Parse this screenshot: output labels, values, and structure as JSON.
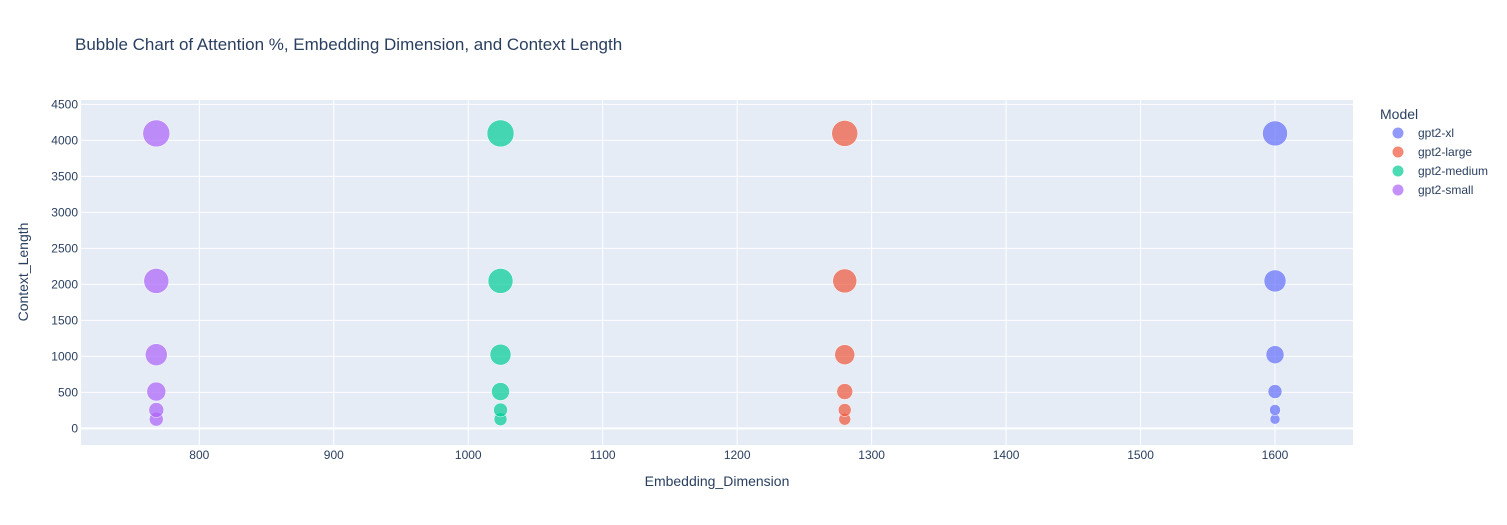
{
  "chart_data": {
    "type": "scatter",
    "title": "Bubble Chart of Attention %, Embedding Dimension, and Context Length",
    "xlabel": "Embedding_Dimension",
    "ylabel": "Context_Length",
    "xlim": [
      712,
      1658
    ],
    "ylim": [
      -230,
      4560
    ],
    "x_ticks": [
      800,
      900,
      1000,
      1100,
      1200,
      1300,
      1400,
      1500,
      1600
    ],
    "y_ticks": [
      0,
      500,
      1000,
      1500,
      2000,
      2500,
      3000,
      3500,
      4000,
      4500
    ],
    "grid": true,
    "legend": {
      "title": "Model",
      "placement": "right"
    },
    "series": [
      {
        "name": "gpt2-xl",
        "color": "#636efa",
        "x": [
          1600,
          1600,
          1600,
          1600,
          1600,
          1600
        ],
        "y": [
          128,
          256,
          512,
          1024,
          2048,
          4096
        ],
        "size": [
          5,
          5.5,
          7,
          9,
          11,
          12.5
        ]
      },
      {
        "name": "gpt2-large",
        "color": "#ef553b",
        "x": [
          1280,
          1280,
          1280,
          1280,
          1280,
          1280
        ],
        "y": [
          128,
          256,
          512,
          1024,
          2048,
          4096
        ],
        "size": [
          6,
          6.5,
          8,
          10,
          12,
          13
        ]
      },
      {
        "name": "gpt2-medium",
        "color": "#00cc96",
        "x": [
          1024,
          1024,
          1024,
          1024,
          1024,
          1024
        ],
        "y": [
          128,
          256,
          512,
          1024,
          2048,
          4096
        ],
        "size": [
          6.5,
          7,
          9,
          10.5,
          12.5,
          13.5
        ]
      },
      {
        "name": "gpt2-small",
        "color": "#ab63fa",
        "x": [
          768,
          768,
          768,
          768,
          768,
          768
        ],
        "y": [
          128,
          256,
          512,
          1024,
          2048,
          4096
        ],
        "size": [
          7,
          7.5,
          9.5,
          11,
          12.5,
          13.5
        ]
      }
    ]
  }
}
